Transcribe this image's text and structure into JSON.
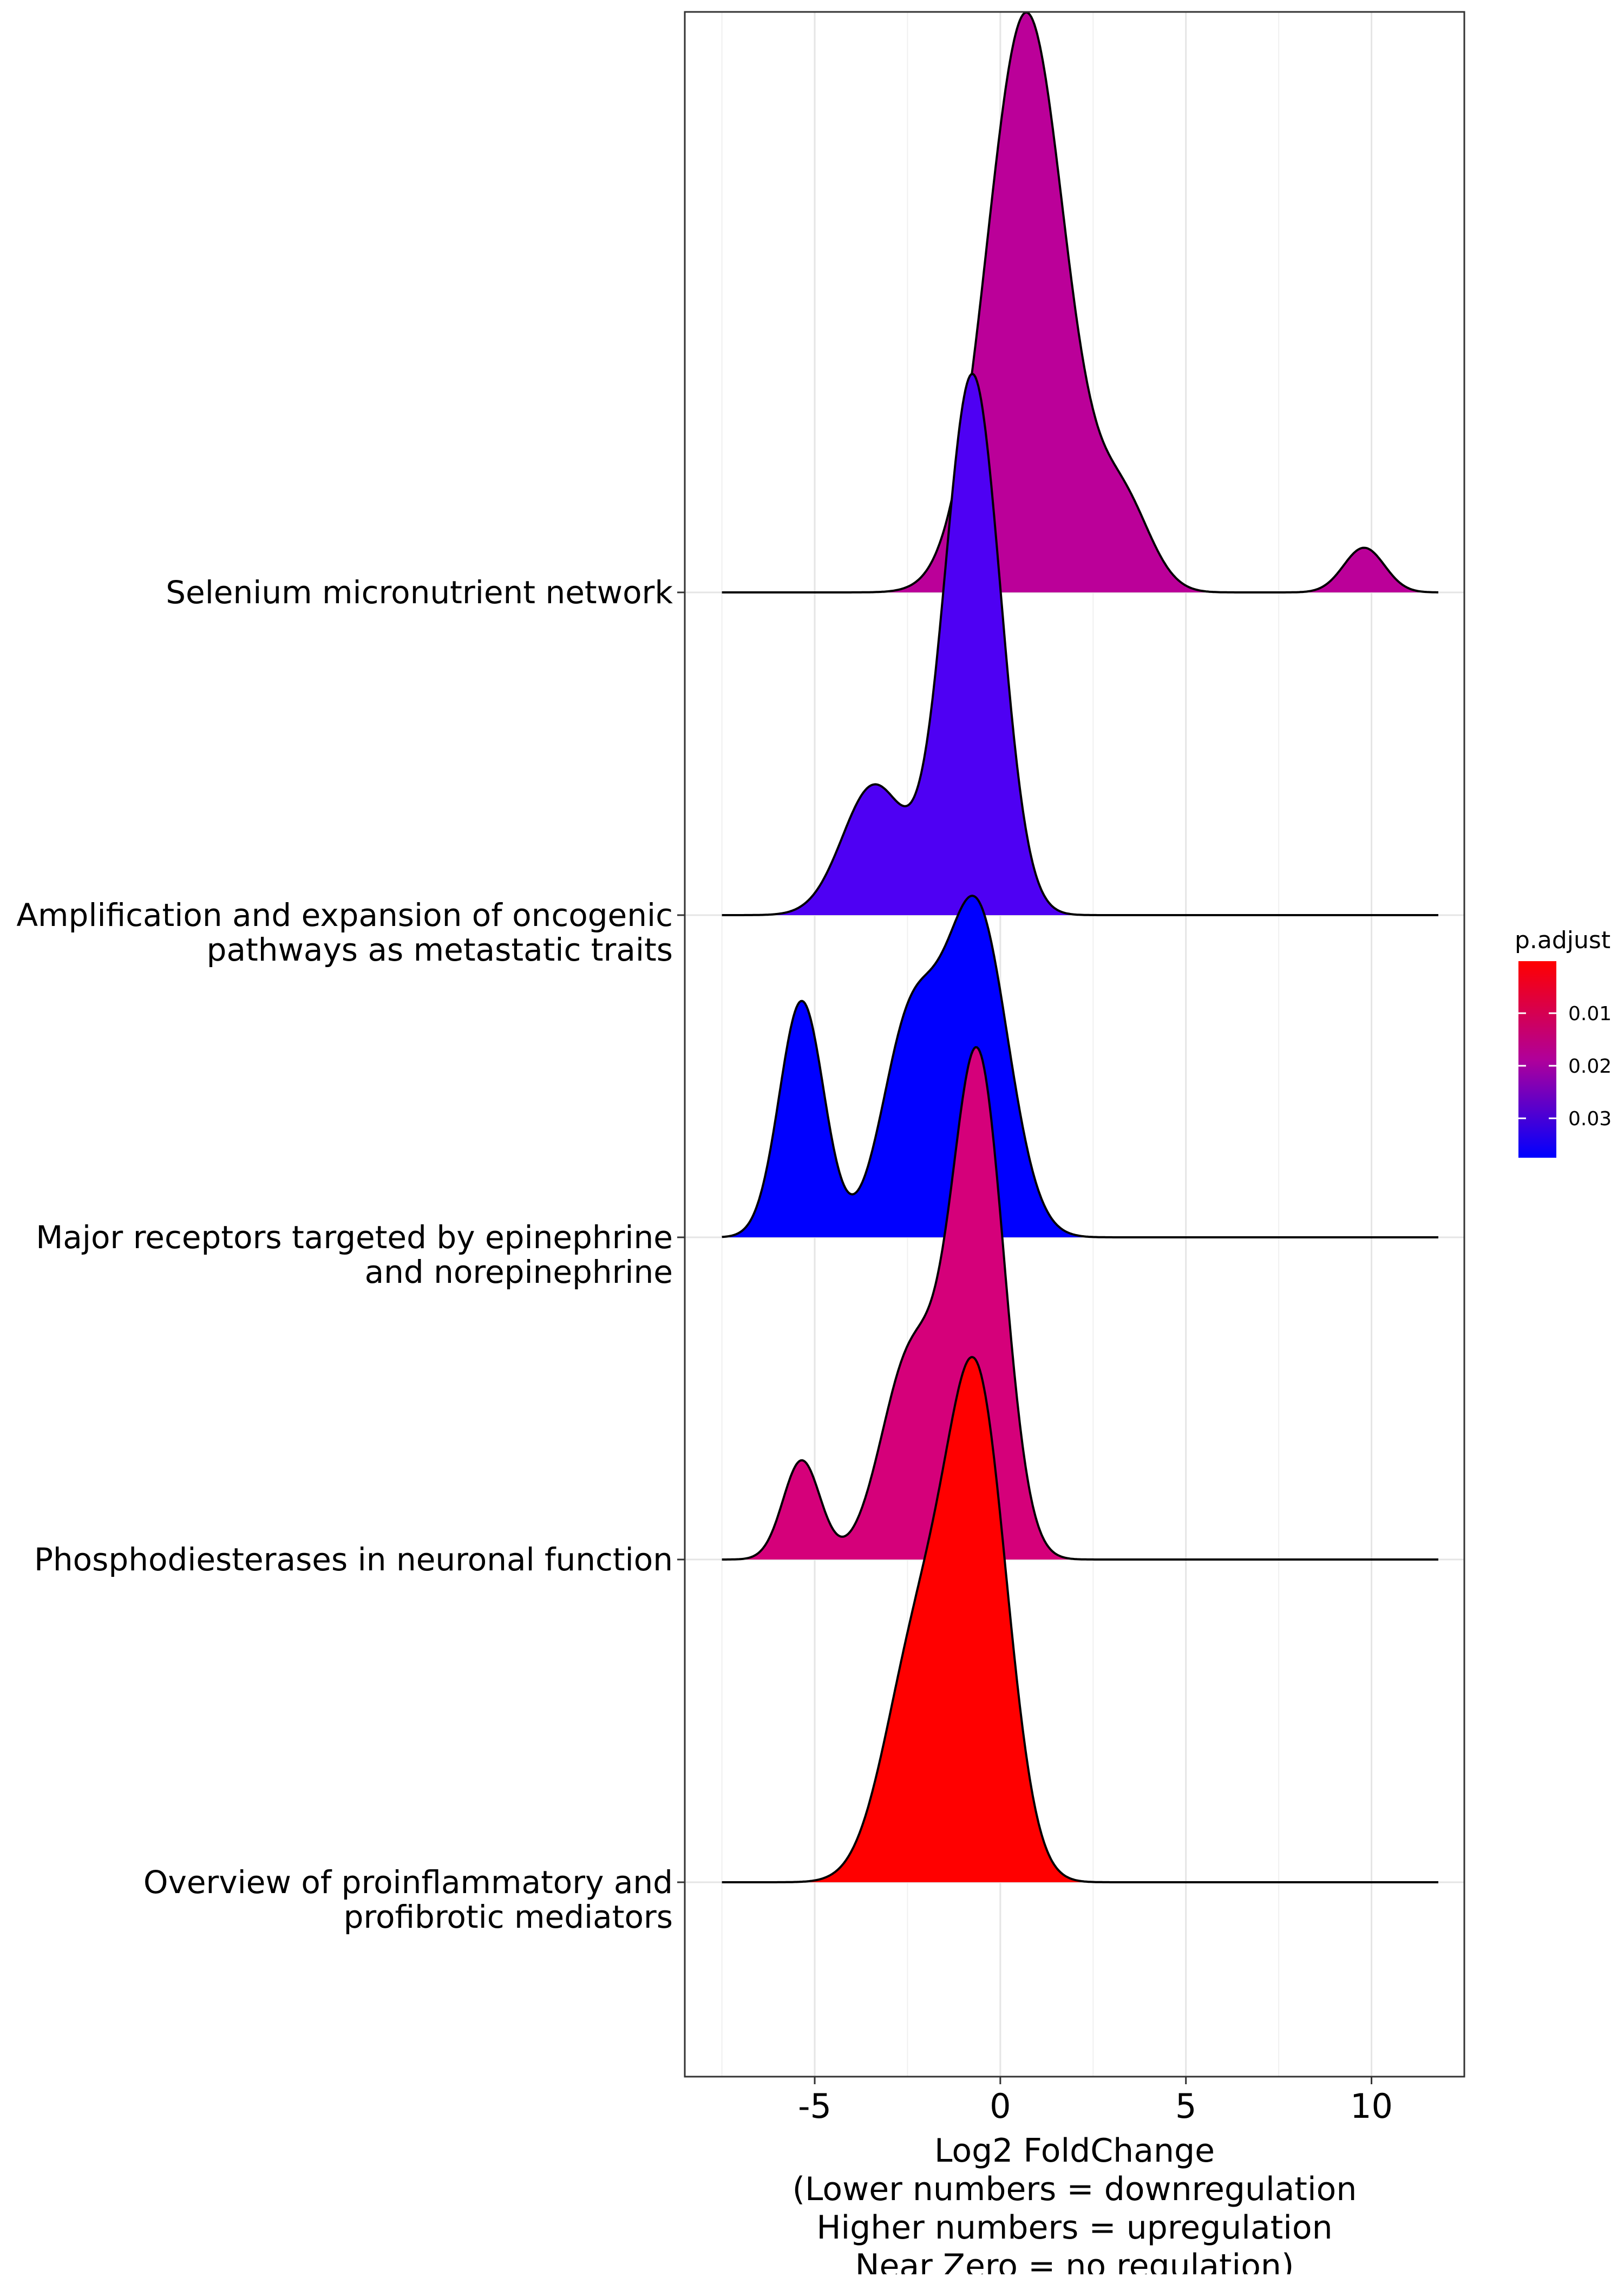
{
  "chart_data": {
    "type": "ridgeline",
    "title": "",
    "xlabel_lines": [
      "Log2 FoldChange",
      "(Lower numbers = downregulation",
      "Higher numbers = upregulation",
      "Near Zero = no regulation)"
    ],
    "ylabel": "",
    "xlim": [
      -8.5,
      12.5
    ],
    "x_ticks": [
      -5,
      0,
      5,
      10
    ],
    "x_tick_labels": [
      "-5",
      "0",
      "5",
      "10"
    ],
    "density_x_range": [
      -7.5,
      11.8
    ],
    "grid": true,
    "legend": {
      "title": "p.adjust",
      "position": "right",
      "range": [
        0.0001,
        0.0375
      ],
      "ticks": [
        0.01,
        0.02,
        0.03
      ],
      "tick_labels": [
        "0.01",
        "0.02",
        "0.03"
      ],
      "color_low": "#FF0000",
      "color_high": "#0000FF"
    },
    "series": [
      {
        "label_lines": [
          "Selenium micronutrient network"
        ],
        "p_adjust": 0.022,
        "color": "#BB0099",
        "components": [
          {
            "mu": 0.7,
            "sd": 1.05,
            "w": 1.0
          },
          {
            "mu": 3.3,
            "sd": 0.75,
            "w": 0.15
          },
          {
            "mu": 9.8,
            "sd": 0.55,
            "w": 0.077
          }
        ],
        "peak_height": 1.8
      },
      {
        "label_lines": [
          "Amplification and expansion of oncogenic",
          "pathways as metastatic traits"
        ],
        "p_adjust": 0.034,
        "color": "#4E00F3",
        "components": [
          {
            "mu": -0.75,
            "sd": 0.75,
            "w": 1.0
          },
          {
            "mu": -3.4,
            "sd": 0.85,
            "w": 0.24
          }
        ],
        "peak_height": 1.68
      },
      {
        "label_lines": [
          "Major receptors targeted by epinephrine",
          "and norepinephrine"
        ],
        "p_adjust": 0.0375,
        "color": "#0000FF",
        "components": [
          {
            "mu": -0.65,
            "sd": 0.85,
            "w": 1.0
          },
          {
            "mu": -2.45,
            "sd": 0.75,
            "w": 0.62
          },
          {
            "mu": -5.35,
            "sd": 0.6,
            "w": 0.72
          }
        ],
        "peak_height": 1.06
      },
      {
        "label_lines": [
          "Phosphodiesterases in neuronal function"
        ],
        "p_adjust": 0.017,
        "color": "#D5007A",
        "components": [
          {
            "mu": -0.6,
            "sd": 0.7,
            "w": 1.0
          },
          {
            "mu": -2.4,
            "sd": 0.8,
            "w": 0.41
          },
          {
            "mu": -5.35,
            "sd": 0.5,
            "w": 0.2
          }
        ],
        "peak_height": 1.59
      },
      {
        "label_lines": [
          "Overview of proinflammatory and",
          "profibrotic mediators"
        ],
        "p_adjust": 0.0001,
        "color": "#FF0000",
        "components": [
          {
            "mu": -0.6,
            "sd": 0.8,
            "w": 1.0
          },
          {
            "mu": -2.2,
            "sd": 0.9,
            "w": 0.5
          }
        ],
        "peak_height": 1.63
      }
    ]
  }
}
